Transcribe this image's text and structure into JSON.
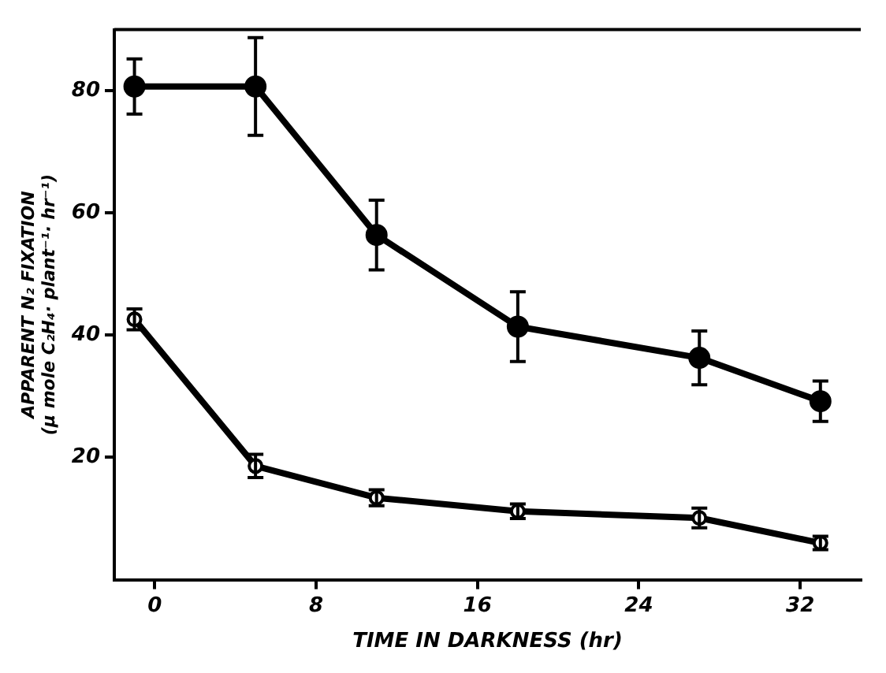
{
  "chart_data": {
    "type": "line",
    "xlabel": "TIME IN DARKNESS (hr)",
    "ylabel": "APPARENT N₂ FIXATION (μ mole C₂H₄· plant⁻¹· hr⁻¹)",
    "xlim": [
      -2,
      35
    ],
    "xticks": [
      0,
      8,
      16,
      24,
      32
    ],
    "ylim": [
      0,
      90
    ],
    "yticks": [
      20,
      40,
      60,
      80
    ],
    "grid": false,
    "legend": false,
    "marker": "circle",
    "line_style": "solid",
    "series": [
      {
        "color": "#000000",
        "x": [
          -1,
          5,
          11,
          18,
          27,
          33
        ],
        "values": [
          80.7,
          80.7,
          56.4,
          41.4,
          36.3,
          29.2
        ],
        "errors": [
          4.5,
          8,
          5.7,
          5.7,
          4.4,
          3.3
        ]
      },
      {
        "color": "#000000",
        "x": [
          -1,
          5,
          11,
          18,
          27,
          33
        ],
        "values": [
          42.6,
          18.6,
          13.4,
          11.2,
          10.1,
          6.0
        ],
        "errors": [
          1.7,
          1.9,
          1.3,
          1.2,
          1.6,
          1.1
        ]
      }
    ]
  }
}
